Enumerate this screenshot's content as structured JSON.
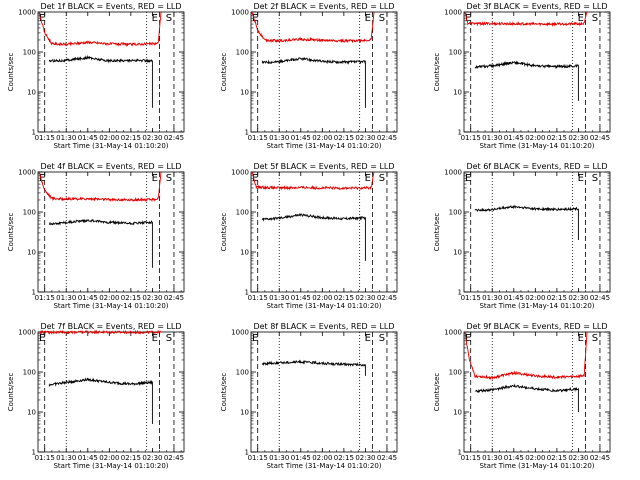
{
  "figure": {
    "title_template_note": "",
    "x_axis_label": "Start Time (31-May-14 01:10:20)",
    "y_axis_label": "Counts/sec",
    "x_tick_labels": [
      "01:15",
      "01:30",
      "01:45",
      "02:00",
      "02:15",
      "02:30",
      "02:45"
    ],
    "y_tick_labels": [
      "1",
      "10",
      "100",
      "1000"
    ],
    "marker_start": "E",
    "marker_end_e": "E",
    "marker_end_s": "S",
    "colors": {
      "events": "#000000",
      "lld": "#e00000"
    }
  },
  "chart_data": [
    {
      "type": "line",
      "title": "Det 1f BLACK = Events, RED = LLD",
      "xlabel": "Start Time (31-May-14 01:10:20)",
      "ylabel": "Counts/sec",
      "yscale": "log",
      "ylim": [
        1,
        1000
      ],
      "xlim": [
        "01:10:20",
        "02:52"
      ],
      "x_ticks": [
        "01:15",
        "01:30",
        "01:45",
        "02:00",
        "02:15",
        "02:30",
        "02:45"
      ],
      "markers": {
        "start_E": "01:11",
        "end_E": "02:35",
        "end_S": "02:40"
      },
      "dashed_lines": [
        "01:15",
        "02:35",
        "02:45"
      ],
      "dotted_lines": [
        "01:30",
        "02:26"
      ],
      "series": [
        {
          "color": "black",
          "start": "01:18",
          "end": "02:30",
          "values": [
            [
              "01:18",
              60
            ],
            [
              "01:30",
              62
            ],
            [
              "01:45",
              72
            ],
            [
              "02:00",
              60
            ],
            [
              "02:15",
              62
            ],
            [
              "02:30",
              60
            ]
          ],
          "drop_to": 4
        },
        {
          "color": "red",
          "start": "01:11",
          "end": "02:36",
          "values": [
            [
              "01:11",
              1000
            ],
            [
              "01:15",
              300
            ],
            [
              "01:20",
              160
            ],
            [
              "01:30",
              155
            ],
            [
              "01:45",
              175
            ],
            [
              "02:00",
              160
            ],
            [
              "02:15",
              155
            ],
            [
              "02:30",
              160
            ],
            [
              "02:34",
              165
            ],
            [
              "02:36",
              1000
            ]
          ]
        }
      ]
    },
    {
      "type": "line",
      "title": "Det 2f BLACK = Events, RED = LLD",
      "xlabel": "Start Time (31-May-14 01:10:20)",
      "ylabel": "Counts/sec",
      "yscale": "log",
      "ylim": [
        1,
        1000
      ],
      "xlim": [
        "01:10:20",
        "02:52"
      ],
      "x_ticks": [
        "01:15",
        "01:30",
        "01:45",
        "02:00",
        "02:15",
        "02:30",
        "02:45"
      ],
      "markers": {
        "start_E": "01:11",
        "end_E": "02:35",
        "end_S": "02:40"
      },
      "dashed_lines": [
        "01:15",
        "02:35",
        "02:45"
      ],
      "dotted_lines": [
        "01:30",
        "02:26"
      ],
      "series": [
        {
          "color": "black",
          "start": "01:18",
          "end": "02:30",
          "values": [
            [
              "01:18",
              55
            ],
            [
              "01:30",
              57
            ],
            [
              "01:45",
              68
            ],
            [
              "02:00",
              58
            ],
            [
              "02:15",
              56
            ],
            [
              "02:30",
              57
            ]
          ],
          "drop_to": 4
        },
        {
          "color": "red",
          "start": "01:11",
          "end": "02:36",
          "values": [
            [
              "01:11",
              1000
            ],
            [
              "01:15",
              350
            ],
            [
              "01:20",
              200
            ],
            [
              "01:30",
              190
            ],
            [
              "01:45",
              210
            ],
            [
              "02:00",
              195
            ],
            [
              "02:15",
              190
            ],
            [
              "02:30",
              195
            ],
            [
              "02:34",
              200
            ],
            [
              "02:36",
              1000
            ]
          ]
        }
      ]
    },
    {
      "type": "line",
      "title": "Det 3f BLACK = Events, RED = LLD",
      "xlabel": "Start Time (31-May-14 01:10:20)",
      "ylabel": "Counts/sec",
      "yscale": "log",
      "ylim": [
        1,
        1000
      ],
      "xlim": [
        "01:10:20",
        "02:52"
      ],
      "x_ticks": [
        "01:15",
        "01:30",
        "01:45",
        "02:00",
        "02:15",
        "02:30",
        "02:45"
      ],
      "markers": {
        "start_E": "01:11",
        "end_E": "02:35",
        "end_S": "02:40"
      },
      "dashed_lines": [
        "01:15",
        "02:35",
        "02:45"
      ],
      "dotted_lines": [
        "01:30",
        "02:26"
      ],
      "series": [
        {
          "color": "black",
          "start": "01:18",
          "end": "02:30",
          "values": [
            [
              "01:18",
              42
            ],
            [
              "01:30",
              45
            ],
            [
              "01:45",
              55
            ],
            [
              "02:00",
              45
            ],
            [
              "02:15",
              43
            ],
            [
              "02:30",
              45
            ]
          ],
          "drop_to": 6
        },
        {
          "color": "red",
          "start": "01:11",
          "end": "02:36",
          "values": [
            [
              "01:11",
              1000
            ],
            [
              "01:13",
              520
            ],
            [
              "01:30",
              510
            ],
            [
              "01:45",
              505
            ],
            [
              "02:00",
              500
            ],
            [
              "02:15",
              500
            ],
            [
              "02:30",
              505
            ],
            [
              "02:34",
              510
            ],
            [
              "02:36",
              1000
            ]
          ]
        }
      ]
    },
    {
      "type": "line",
      "title": "Det 4f BLACK = Events, RED = LLD",
      "xlabel": "Start Time (31-May-14 01:10:20)",
      "ylabel": "Counts/sec",
      "yscale": "log",
      "ylim": [
        1,
        1000
      ],
      "xlim": [
        "01:10:20",
        "02:52"
      ],
      "x_ticks": [
        "01:15",
        "01:30",
        "01:45",
        "02:00",
        "02:15",
        "02:30",
        "02:45"
      ],
      "markers": {
        "start_E": "01:11",
        "end_E": "02:35",
        "end_S": "02:40"
      },
      "dashed_lines": [
        "01:15",
        "02:35",
        "02:45"
      ],
      "dotted_lines": [
        "01:30",
        "02:26"
      ],
      "series": [
        {
          "color": "black",
          "start": "01:18",
          "end": "02:30",
          "values": [
            [
              "01:18",
              50
            ],
            [
              "01:30",
              55
            ],
            [
              "01:45",
              62
            ],
            [
              "02:00",
              55
            ],
            [
              "02:15",
              52
            ],
            [
              "02:30",
              55
            ]
          ],
          "drop_to": 4
        },
        {
          "color": "red",
          "start": "01:11",
          "end": "02:36",
          "values": [
            [
              "01:11",
              1000
            ],
            [
              "01:15",
              350
            ],
            [
              "01:20",
              220
            ],
            [
              "01:30",
              210
            ],
            [
              "01:45",
              215
            ],
            [
              "02:00",
              205
            ],
            [
              "02:15",
              200
            ],
            [
              "02:30",
              205
            ],
            [
              "02:34",
              210
            ],
            [
              "02:36",
              1000
            ]
          ]
        }
      ]
    },
    {
      "type": "line",
      "title": "Det 5f BLACK = Events, RED = LLD",
      "xlabel": "Start Time (31-May-14 01:10:20)",
      "ylabel": "Counts/sec",
      "yscale": "log",
      "ylim": [
        1,
        1000
      ],
      "xlim": [
        "01:10:20",
        "02:52"
      ],
      "x_ticks": [
        "01:15",
        "01:30",
        "01:45",
        "02:00",
        "02:15",
        "02:30",
        "02:45"
      ],
      "markers": {
        "start_E": "01:11",
        "end_E": "02:35",
        "end_S": "02:40"
      },
      "dashed_lines": [
        "01:15",
        "02:35",
        "02:45"
      ],
      "dotted_lines": [
        "01:30",
        "02:26"
      ],
      "series": [
        {
          "color": "black",
          "start": "01:18",
          "end": "02:30",
          "values": [
            [
              "01:18",
              65
            ],
            [
              "01:30",
              70
            ],
            [
              "01:45",
              85
            ],
            [
              "02:00",
              72
            ],
            [
              "02:15",
              68
            ],
            [
              "02:30",
              72
            ]
          ],
          "drop_to": 6
        },
        {
          "color": "red",
          "start": "01:11",
          "end": "02:36",
          "values": [
            [
              "01:11",
              1000
            ],
            [
              "01:14",
              420
            ],
            [
              "01:30",
              400
            ],
            [
              "01:45",
              410
            ],
            [
              "02:00",
              400
            ],
            [
              "02:15",
              395
            ],
            [
              "02:30",
              400
            ],
            [
              "02:34",
              405
            ],
            [
              "02:36",
              1000
            ]
          ]
        }
      ]
    },
    {
      "type": "line",
      "title": "Det 6f BLACK = Events, RED = LLD",
      "xlabel": "Start Time (31-May-14 01:10:20)",
      "ylabel": "Counts/sec",
      "yscale": "log",
      "ylim": [
        1,
        1000
      ],
      "xlim": [
        "01:10:20",
        "02:52"
      ],
      "x_ticks": [
        "01:15",
        "01:30",
        "01:45",
        "02:00",
        "02:15",
        "02:30",
        "02:45"
      ],
      "markers": {
        "start_E": "01:11",
        "end_E": "02:35",
        "end_S": "02:40"
      },
      "dashed_lines": [
        "01:15",
        "02:35",
        "02:45"
      ],
      "dotted_lines": [
        "01:30",
        "02:26"
      ],
      "series": [
        {
          "color": "black",
          "start": "01:18",
          "end": "02:30",
          "values": [
            [
              "01:18",
              110
            ],
            [
              "01:30",
              115
            ],
            [
              "01:45",
              135
            ],
            [
              "02:00",
              120
            ],
            [
              "02:15",
              115
            ],
            [
              "02:30",
              120
            ]
          ],
          "drop_to": 20
        }
      ]
    },
    {
      "type": "line",
      "title": "Det 7f BLACK = Events, RED = LLD",
      "xlabel": "Start Time (31-May-14 01:10:20)",
      "ylabel": "Counts/sec",
      "yscale": "log",
      "ylim": [
        1,
        1000
      ],
      "xlim": [
        "01:10:20",
        "02:52"
      ],
      "x_ticks": [
        "01:15",
        "01:30",
        "01:45",
        "02:00",
        "02:15",
        "02:30",
        "02:45"
      ],
      "markers": {
        "start_E": "01:11",
        "end_E": "02:35",
        "end_S": "02:40"
      },
      "dashed_lines": [
        "01:15",
        "02:35",
        "02:45"
      ],
      "dotted_lines": [
        "01:30",
        "02:26"
      ],
      "series": [
        {
          "color": "black",
          "start": "01:18",
          "end": "02:30",
          "values": [
            [
              "01:18",
              48
            ],
            [
              "01:30",
              55
            ],
            [
              "01:45",
              65
            ],
            [
              "02:00",
              55
            ],
            [
              "02:15",
              50
            ],
            [
              "02:30",
              55
            ]
          ],
          "drop_to": 5
        },
        {
          "color": "red",
          "start": "01:11",
          "end": "02:36",
          "values": [
            [
              "01:11",
              1000
            ],
            [
              "01:30",
              980
            ],
            [
              "01:45",
              1000
            ],
            [
              "02:00",
              990
            ],
            [
              "02:15",
              985
            ],
            [
              "02:30",
              990
            ],
            [
              "02:36",
              1000
            ]
          ]
        }
      ]
    },
    {
      "type": "line",
      "title": "Det 8f BLACK = Events, RED = LLD",
      "xlabel": "Start Time (31-May-14 01:10:20)",
      "ylabel": "Counts/sec",
      "yscale": "log",
      "ylim": [
        1,
        1000
      ],
      "xlim": [
        "01:10:20",
        "02:52"
      ],
      "x_ticks": [
        "01:15",
        "01:30",
        "01:45",
        "02:00",
        "02:15",
        "02:30",
        "02:45"
      ],
      "markers": {
        "start_E": "01:11",
        "end_E": "02:35",
        "end_S": "02:40"
      },
      "dashed_lines": [
        "01:15",
        "02:35",
        "02:45"
      ],
      "dotted_lines": [
        "01:30",
        "02:26"
      ],
      "series": [
        {
          "color": "black",
          "start": "01:18",
          "end": "02:30",
          "values": [
            [
              "01:18",
              160
            ],
            [
              "01:30",
              170
            ],
            [
              "01:45",
              180
            ],
            [
              "02:00",
              165
            ],
            [
              "02:15",
              155
            ],
            [
              "02:30",
              150
            ]
          ],
          "drop_to": 80
        }
      ]
    },
    {
      "type": "line",
      "title": "Det 9f BLACK = Events, RED = LLD",
      "xlabel": "Start Time (31-May-14 01:10:20)",
      "ylabel": "Counts/sec",
      "yscale": "log",
      "ylim": [
        1,
        1000
      ],
      "xlim": [
        "01:10:20",
        "02:52"
      ],
      "x_ticks": [
        "01:15",
        "01:30",
        "01:45",
        "02:00",
        "02:15",
        "02:30",
        "02:45"
      ],
      "markers": {
        "start_E": "01:11",
        "end_E": "02:35",
        "end_S": "02:40"
      },
      "dashed_lines": [
        "01:15",
        "02:35",
        "02:45"
      ],
      "dotted_lines": [
        "01:30",
        "02:26"
      ],
      "series": [
        {
          "color": "black",
          "start": "01:18",
          "end": "02:30",
          "values": [
            [
              "01:18",
              33
            ],
            [
              "01:30",
              36
            ],
            [
              "01:45",
              45
            ],
            [
              "02:00",
              38
            ],
            [
              "02:15",
              34
            ],
            [
              "02:30",
              38
            ]
          ],
          "drop_to": 10
        },
        {
          "color": "red",
          "start": "01:11",
          "end": "02:36",
          "values": [
            [
              "01:11",
              1000
            ],
            [
              "01:14",
              200
            ],
            [
              "01:18",
              80
            ],
            [
              "01:30",
              72
            ],
            [
              "01:45",
              95
            ],
            [
              "02:00",
              80
            ],
            [
              "02:15",
              74
            ],
            [
              "02:30",
              78
            ],
            [
              "02:34",
              82
            ],
            [
              "02:36",
              1000
            ]
          ]
        }
      ]
    }
  ]
}
